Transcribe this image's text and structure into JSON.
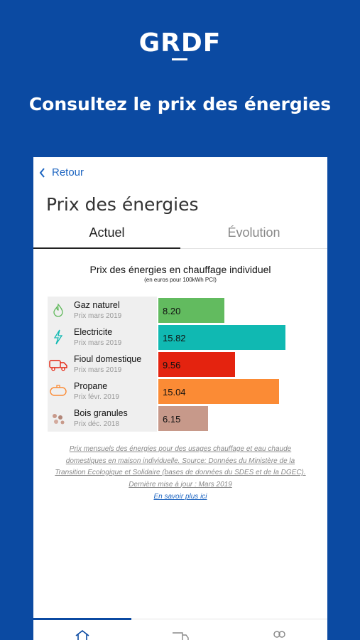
{
  "brand": {
    "logo_text": "GRDF"
  },
  "headline": "Consultez le prix des énergies",
  "app": {
    "back_label": "Retour",
    "title": "Prix des énergies",
    "tabs": [
      {
        "label": "Actuel",
        "active": true
      },
      {
        "label": "Évolution",
        "active": false
      }
    ]
  },
  "chart_data": {
    "type": "bar",
    "orientation": "horizontal",
    "title": "Prix des énergies en chauffage individuel",
    "subtitle": "(en euros pour 100kWh PCI)",
    "xlim": [
      0,
      18
    ],
    "grid": false,
    "categories": [
      "Gaz naturel",
      "Electricite",
      "Fioul domestique",
      "Propane",
      "Bois granules"
    ],
    "dates": [
      "Prix mars 2019",
      "Prix mars 2019",
      "Prix mars 2019",
      "Prix févr. 2019",
      "Prix déc. 2018"
    ],
    "values": [
      8.2,
      15.82,
      9.56,
      15.04,
      6.15
    ],
    "value_labels": [
      "8.20",
      "15.82",
      "9.56",
      "15.04",
      "6.15"
    ],
    "colors": [
      "#62bb5f",
      "#10b9b2",
      "#e4230f",
      "#fb8b35",
      "#c7998a"
    ],
    "icons": [
      "flame-icon",
      "lightning-icon",
      "fuel-truck-icon",
      "propane-tank-icon",
      "wood-pellets-icon"
    ]
  },
  "footnote": "Prix mensuels des énergies pour des usages chauffage et eau chaude domestiques en maison individuelle. Source: Données du Ministère de la Transition Ecologique et Solidaire (bases de données du SDES et de la DGEC). Dernière mise à jour : Mars 2019",
  "more_link": "En savoir plus ici",
  "bottom_nav": {
    "items": [
      {
        "icon": "home-icon",
        "active": true
      },
      {
        "icon": "truck-icon",
        "active": false
      },
      {
        "icon": "users-icon",
        "active": false
      }
    ]
  },
  "colors": {
    "brand_blue": "#0b4aa2",
    "link_blue": "#1c64c0"
  }
}
